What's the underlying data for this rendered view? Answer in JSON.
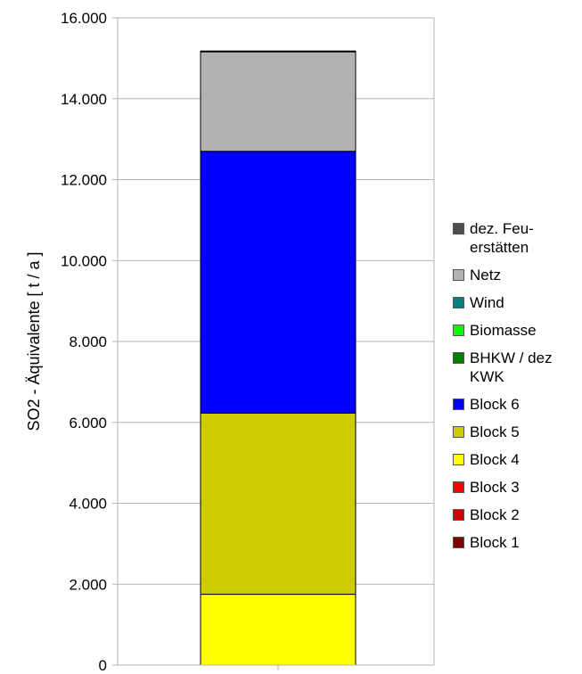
{
  "chart_data": {
    "type": "bar",
    "stacked": true,
    "ylabel": "SO2 - Äquivalente [ t / a ]",
    "xlabel": "",
    "ylim": [
      0,
      16000
    ],
    "y_ticks": [
      {
        "value": 0,
        "label": "0"
      },
      {
        "value": 2000,
        "label": "2.000"
      },
      {
        "value": 4000,
        "label": "4.000"
      },
      {
        "value": 6000,
        "label": "6.000"
      },
      {
        "value": 8000,
        "label": "8.000"
      },
      {
        "value": 10000,
        "label": "10.000"
      },
      {
        "value": 12000,
        "label": "12.000"
      },
      {
        "value": 14000,
        "label": "14.000"
      },
      {
        "value": 16000,
        "label": "16.000"
      }
    ],
    "grid": true,
    "legend_position": "right",
    "categories": [
      ""
    ],
    "series": [
      {
        "name": "Block 1",
        "color": "#800000",
        "values": [
          0
        ]
      },
      {
        "name": "Block 2",
        "color": "#cc0000",
        "values": [
          0
        ]
      },
      {
        "name": "Block 3",
        "color": "#ff0000",
        "values": [
          0
        ]
      },
      {
        "name": "Block 4",
        "color": "#ffff00",
        "values": [
          1750
        ]
      },
      {
        "name": "Block 5",
        "color": "#cccc00",
        "values": [
          4480
        ]
      },
      {
        "name": "Block 6",
        "color": "#0000ff",
        "values": [
          6470
        ]
      },
      {
        "name": "BHKW / dez KWK",
        "color": "#008000",
        "values": [
          0
        ]
      },
      {
        "name": "Biomasse",
        "color": "#00ff00",
        "values": [
          0
        ]
      },
      {
        "name": "Wind",
        "color": "#008080",
        "values": [
          0
        ]
      },
      {
        "name": "Netz",
        "color": "#b2b2b2",
        "values": [
          2460
        ]
      },
      {
        "name": "dez. Feuerstätten",
        "color": "#4d4d4d",
        "values": [
          20
        ]
      }
    ]
  },
  "legend": {
    "items": [
      {
        "lines": [
          "dez. Feu-",
          "erstätten"
        ],
        "color": "#4d4d4d"
      },
      {
        "lines": [
          "Netz"
        ],
        "color": "#b2b2b2"
      },
      {
        "lines": [
          "Wind"
        ],
        "color": "#008080"
      },
      {
        "lines": [
          "Biomasse"
        ],
        "color": "#00ff00"
      },
      {
        "lines": [
          "BHKW / dez",
          "KWK"
        ],
        "color": "#008000"
      },
      {
        "lines": [
          "Block 6"
        ],
        "color": "#0000ff"
      },
      {
        "lines": [
          "Block 5"
        ],
        "color": "#cccc00"
      },
      {
        "lines": [
          "Block 4"
        ],
        "color": "#ffff00"
      },
      {
        "lines": [
          "Block 3"
        ],
        "color": "#ff0000"
      },
      {
        "lines": [
          "Block 2"
        ],
        "color": "#cc0000"
      },
      {
        "lines": [
          "Block 1"
        ],
        "color": "#800000"
      }
    ]
  }
}
